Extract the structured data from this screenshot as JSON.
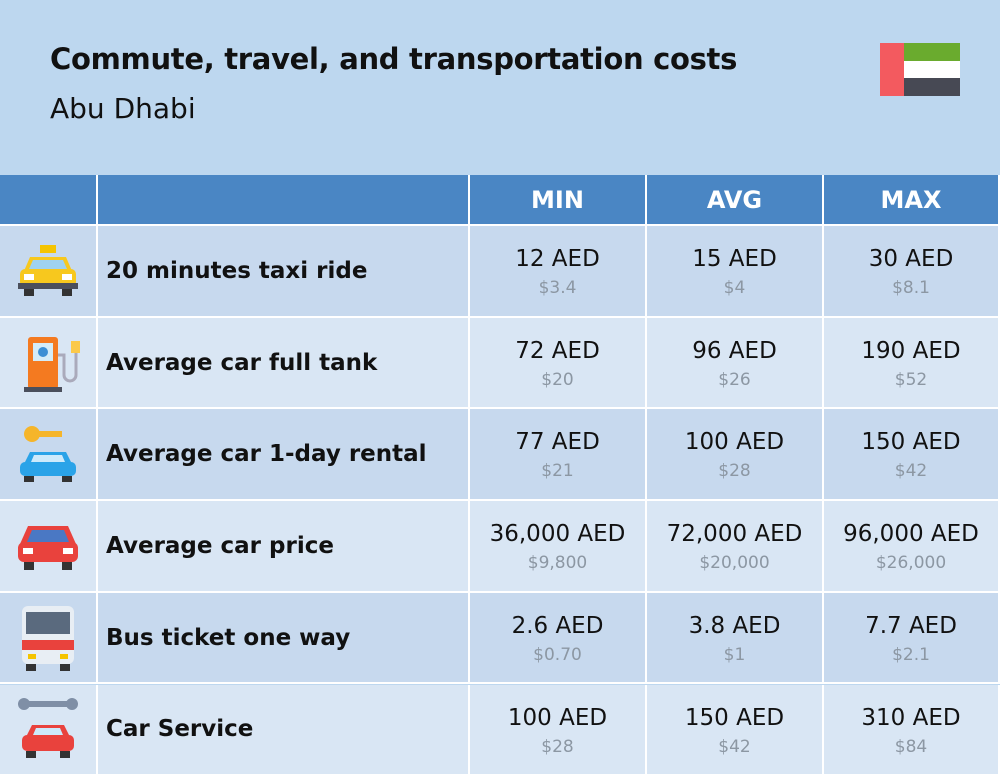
{
  "header": {
    "title": "Commute, travel, and transportation costs",
    "subtitle": "Abu Dhabi"
  },
  "table": {
    "columns": [
      "MIN",
      "AVG",
      "MAX"
    ],
    "rows": [
      {
        "label": "20 minutes taxi ride",
        "cells": [
          {
            "main": "12 AED",
            "sub": "$3.4"
          },
          {
            "main": "15 AED",
            "sub": "$4"
          },
          {
            "main": "30 AED",
            "sub": "$8.1"
          }
        ]
      },
      {
        "label": "Average car full tank",
        "cells": [
          {
            "main": "72 AED",
            "sub": "$20"
          },
          {
            "main": "96 AED",
            "sub": "$26"
          },
          {
            "main": "190 AED",
            "sub": "$52"
          }
        ]
      },
      {
        "label": "Average car 1-day rental",
        "cells": [
          {
            "main": "77 AED",
            "sub": "$21"
          },
          {
            "main": "100 AED",
            "sub": "$28"
          },
          {
            "main": "150 AED",
            "sub": "$42"
          }
        ]
      },
      {
        "label": "Average car price",
        "cells": [
          {
            "main": "36,000 AED",
            "sub": "$9,800"
          },
          {
            "main": "72,000 AED",
            "sub": "$20,000"
          },
          {
            "main": "96,000 AED",
            "sub": "$26,000"
          }
        ]
      },
      {
        "label": "Bus ticket one way",
        "cells": [
          {
            "main": "2.6 AED",
            "sub": "$0.70"
          },
          {
            "main": "3.8 AED",
            "sub": "$1"
          },
          {
            "main": "7.7 AED",
            "sub": "$2.1"
          }
        ]
      },
      {
        "label": "Car Service",
        "cells": [
          {
            "main": "100 AED",
            "sub": "$28"
          },
          {
            "main": "150 AED",
            "sub": "$42"
          },
          {
            "main": "310 AED",
            "sub": "$84"
          }
        ]
      }
    ]
  }
}
